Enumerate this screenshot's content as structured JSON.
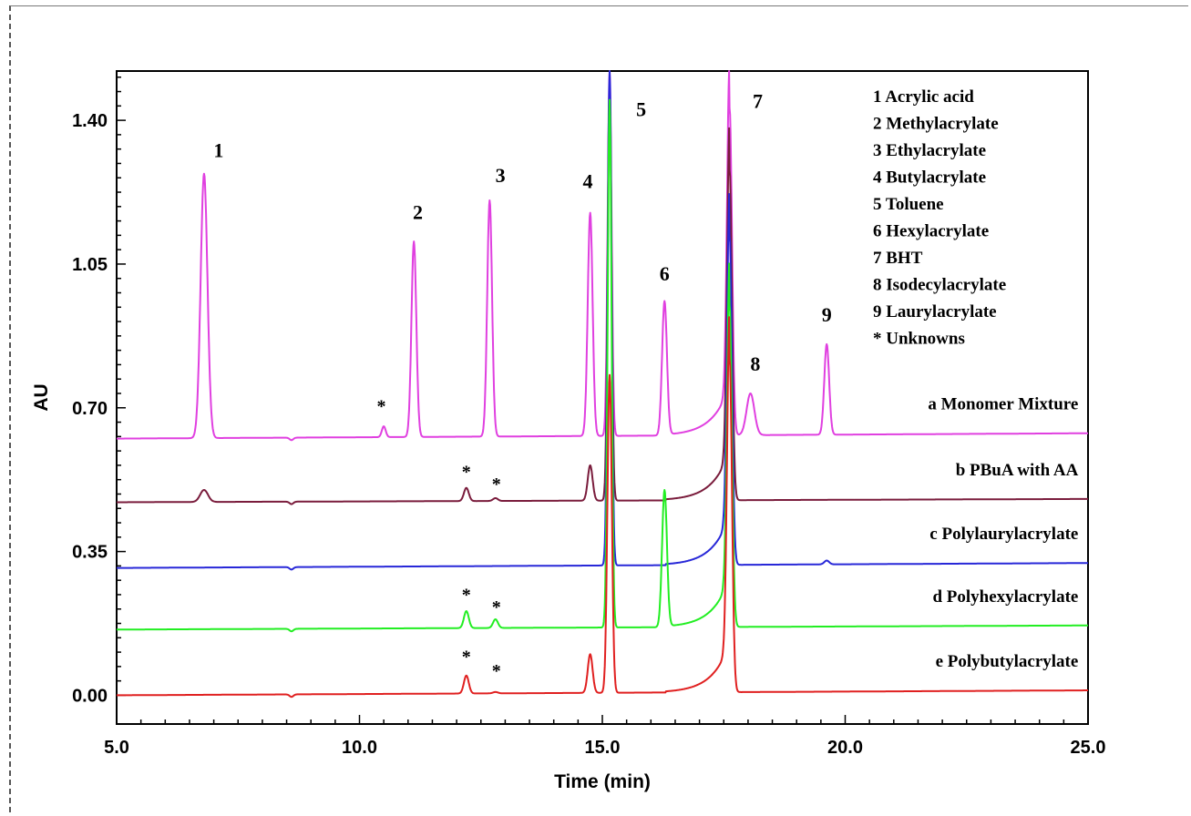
{
  "chart_data": {
    "type": "line",
    "xlabel": "Time (min)",
    "ylabel": "AU",
    "xlim": [
      5.0,
      25.0
    ],
    "ylim": [
      -0.07,
      1.52
    ],
    "xticks": [
      5.0,
      10.0,
      15.0,
      20.0,
      25.0
    ],
    "xtick_labels": [
      "5.0",
      "10.0",
      "15.0",
      "20.0",
      "25.0"
    ],
    "yticks": [
      0.0,
      0.35,
      0.7,
      1.05,
      1.4
    ],
    "ytick_labels": [
      "0.00",
      "0.35",
      "0.70",
      "1.05",
      "1.40"
    ],
    "grid": false,
    "legend_entries": [
      "1 Acrylic acid",
      "2 Methylacrylate",
      "3 Ethylacrylate",
      "4 Butylacrylate",
      "5 Toluene",
      "6 Hexylacrylate",
      "7 BHT",
      "8 Isodecylacrylate",
      "9 Laurylacrylate",
      "* Unknowns"
    ],
    "series": [
      {
        "name": "a Monomer Mixture",
        "color": "#e040e0",
        "baseline_start": 0.625,
        "baseline_end": 0.638,
        "peaks": [
          [
            6.8,
            1.27,
            0.07
          ],
          [
            10.5,
            0.655,
            0.04
          ],
          [
            11.12,
            1.105,
            0.05
          ],
          [
            12.68,
            1.205,
            0.05
          ],
          [
            14.75,
            1.175,
            0.05
          ],
          [
            15.15,
            1.52,
            0.04
          ],
          [
            16.28,
            0.96,
            0.05
          ],
          [
            17.62,
            1.43,
            0.05
          ],
          [
            18.05,
            0.735,
            0.08
          ],
          [
            19.62,
            0.855,
            0.05
          ]
        ]
      },
      {
        "name": "b PBuA with AA",
        "color": "#7a1c3c",
        "baseline_start": 0.47,
        "baseline_end": 0.478,
        "peaks": [
          [
            6.8,
            0.5,
            0.08
          ],
          [
            12.2,
            0.505,
            0.05
          ],
          [
            12.8,
            0.48,
            0.05
          ],
          [
            14.75,
            0.56,
            0.05
          ],
          [
            15.15,
            1.48,
            0.04
          ],
          [
            17.62,
            1.28,
            0.05
          ]
        ]
      },
      {
        "name": "c Polylaurylacrylate",
        "color": "#2828d8",
        "baseline_start": 0.31,
        "baseline_end": 0.322,
        "peaks": [
          [
            15.15,
            1.52,
            0.04
          ],
          [
            17.62,
            1.12,
            0.05
          ],
          [
            19.62,
            0.328,
            0.05
          ]
        ]
      },
      {
        "name": "d Polyhexylacrylate",
        "color": "#22ee22",
        "baseline_start": 0.16,
        "baseline_end": 0.17,
        "peaks": [
          [
            12.2,
            0.205,
            0.05
          ],
          [
            12.8,
            0.185,
            0.05
          ],
          [
            15.15,
            1.45,
            0.04
          ],
          [
            16.28,
            0.5,
            0.05
          ],
          [
            17.62,
            0.95,
            0.05
          ]
        ]
      },
      {
        "name": "e Polybutylacrylate",
        "color": "#e02020",
        "baseline_start": 0.0,
        "baseline_end": 0.012,
        "peaks": [
          [
            12.2,
            0.048,
            0.05
          ],
          [
            12.8,
            0.008,
            0.05
          ],
          [
            14.75,
            0.1,
            0.05
          ],
          [
            15.15,
            0.78,
            0.045
          ],
          [
            17.62,
            0.82,
            0.05
          ]
        ]
      }
    ],
    "peak_labels": [
      {
        "text": "1",
        "x": 7.1,
        "y": 1.31
      },
      {
        "text": "2",
        "x": 11.2,
        "y": 1.16
      },
      {
        "text": "3",
        "x": 12.9,
        "y": 1.25
      },
      {
        "text": "4",
        "x": 14.7,
        "y": 1.235
      },
      {
        "text": "5",
        "x": 15.8,
        "y": 1.41
      },
      {
        "text": "6",
        "x": 16.28,
        "y": 1.01
      },
      {
        "text": "7",
        "x": 18.2,
        "y": 1.43
      },
      {
        "text": "8",
        "x": 18.15,
        "y": 0.79
      },
      {
        "text": "9",
        "x": 19.62,
        "y": 0.91
      }
    ],
    "unknown_marks": [
      {
        "text": "*",
        "x": 10.45,
        "y": 0.69
      },
      {
        "text": "*",
        "x": 12.2,
        "y": 0.53
      },
      {
        "text": "*",
        "x": 12.82,
        "y": 0.5
      },
      {
        "text": "*",
        "x": 12.2,
        "y": 0.23
      },
      {
        "text": "*",
        "x": 12.82,
        "y": 0.2
      },
      {
        "text": "*",
        "x": 12.2,
        "y": 0.08
      },
      {
        "text": "*",
        "x": 12.82,
        "y": 0.045
      }
    ]
  }
}
